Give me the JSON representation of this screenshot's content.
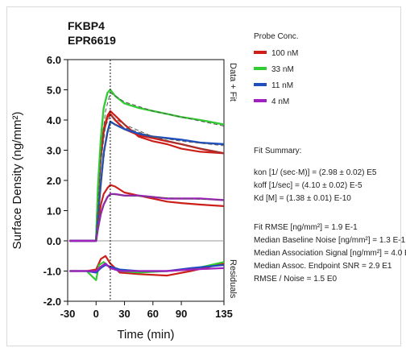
{
  "chart_data": {
    "type": "line",
    "title": "FKBP4",
    "subtitle": "EPR6619",
    "xlabel": "Time (min)",
    "ylabel": "Surface Density (ng/mm²)",
    "x_ticks": [
      "-30",
      "0",
      "30",
      "60",
      "90",
      "135"
    ],
    "y_ticks": [
      "6.0",
      "5.0",
      "4.0",
      "3.0",
      "2.0",
      "1.0",
      "0.0",
      "-1.0",
      "-2.0"
    ],
    "xlim": [
      -30,
      135
    ],
    "ylim": [
      -2.0,
      6.0
    ],
    "data_fit_label": "Data + Fit",
    "residuals_label": "Residuals",
    "legend_title": "Probe Conc.",
    "series": [
      {
        "name": "100 nM",
        "color": "#cc1f1a",
        "x": [
          -28,
          -20,
          -10,
          -2,
          0,
          2,
          5,
          8,
          12,
          15,
          20,
          30,
          45,
          60,
          75,
          90,
          110,
          135
        ],
        "y": [
          0,
          0,
          0,
          0,
          0,
          1.5,
          2.8,
          3.6,
          4.1,
          4.2,
          4.0,
          3.7,
          3.5,
          3.4,
          3.3,
          3.2,
          3.05,
          2.9
        ]
      },
      {
        "name": "33 nM",
        "color": "#33cc33",
        "x": [
          -28,
          -20,
          -10,
          -2,
          0,
          2,
          5,
          8,
          12,
          15,
          20,
          30,
          45,
          60,
          75,
          90,
          110,
          135
        ],
        "y": [
          0,
          0,
          0,
          0,
          0,
          1.8,
          3.4,
          4.4,
          4.9,
          5.0,
          4.8,
          4.55,
          4.4,
          4.3,
          4.2,
          4.1,
          4.0,
          3.85
        ]
      },
      {
        "name": "11 nM",
        "color": "#1f4fbf",
        "x": [
          -28,
          -20,
          -10,
          -2,
          0,
          2,
          5,
          8,
          12,
          15,
          20,
          30,
          45,
          60,
          75,
          90,
          110,
          135
        ],
        "y": [
          0,
          0,
          0,
          0,
          0,
          0.8,
          1.9,
          2.9,
          3.6,
          3.95,
          3.85,
          3.7,
          3.55,
          3.45,
          3.4,
          3.35,
          3.25,
          3.2
        ]
      },
      {
        "name": "4 nM",
        "color": "#a020c0",
        "x": [
          -28,
          -20,
          -10,
          -2,
          0,
          2,
          5,
          8,
          12,
          15,
          20,
          30,
          45,
          60,
          75,
          90,
          110,
          135
        ],
        "y": [
          0,
          0,
          0,
          0,
          0,
          0.4,
          0.9,
          1.2,
          1.45,
          1.55,
          1.55,
          1.5,
          1.5,
          1.45,
          1.4,
          1.4,
          1.4,
          1.35
        ]
      }
    ],
    "extra_traces": [
      {
        "color": "#cc1f1a",
        "x": [
          -28,
          -10,
          -2,
          0,
          2,
          5,
          8,
          12,
          15,
          20,
          30,
          45,
          60,
          75,
          90,
          110,
          135
        ],
        "y": [
          0,
          0,
          0,
          0,
          1.6,
          2.9,
          3.7,
          4.15,
          4.3,
          4.15,
          3.85,
          3.45,
          3.3,
          3.2,
          3.05,
          2.95,
          2.9
        ]
      },
      {
        "color": "#cc1f1a",
        "x": [
          -28,
          -10,
          -2,
          0,
          2,
          5,
          8,
          12,
          15,
          20,
          30,
          45,
          60,
          75,
          90,
          110,
          135
        ],
        "y": [
          0,
          0,
          0,
          0,
          0.6,
          1.2,
          1.55,
          1.75,
          1.85,
          1.8,
          1.6,
          1.5,
          1.4,
          1.3,
          1.25,
          1.2,
          1.15
        ]
      }
    ],
    "fit_curves": [
      {
        "x": [
          0,
          5,
          10,
          15,
          30,
          60,
          90,
          135
        ],
        "y": [
          0,
          2.6,
          3.8,
          4.15,
          3.85,
          3.45,
          3.2,
          2.9
        ]
      },
      {
        "x": [
          0,
          5,
          10,
          15,
          30,
          60,
          90,
          135
        ],
        "y": [
          0,
          2.9,
          4.3,
          4.9,
          4.6,
          4.3,
          4.1,
          3.8
        ]
      },
      {
        "x": [
          0,
          5,
          10,
          15,
          30,
          60,
          90,
          135
        ],
        "y": [
          0,
          1.8,
          3.2,
          3.9,
          3.75,
          3.45,
          3.3,
          3.15
        ]
      },
      {
        "x": [
          0,
          5,
          10,
          15,
          30,
          60,
          90,
          135
        ],
        "y": [
          0,
          0.9,
          1.35,
          1.55,
          1.5,
          1.45,
          1.4,
          1.35
        ]
      }
    ],
    "residuals": [
      {
        "color": "#cc1f1a",
        "x": [
          -28,
          -10,
          0,
          5,
          10,
          15,
          25,
          45,
          75,
          100,
          135
        ],
        "y": [
          -1.0,
          -1.0,
          -0.95,
          -0.6,
          -0.5,
          -0.75,
          -1.05,
          -1.1,
          -1.15,
          -1.0,
          -0.75
        ]
      },
      {
        "color": "#33cc33",
        "x": [
          -28,
          -10,
          0,
          3,
          8,
          15,
          25,
          45,
          75,
          100,
          135
        ],
        "y": [
          -1.0,
          -1.0,
          -1.3,
          -0.8,
          -0.7,
          -0.9,
          -1.0,
          -1.05,
          -1.0,
          -0.95,
          -0.7
        ]
      },
      {
        "color": "#1f4fbf",
        "x": [
          -28,
          -10,
          0,
          5,
          10,
          15,
          25,
          45,
          75,
          100,
          135
        ],
        "y": [
          -1.0,
          -1.0,
          -1.05,
          -0.9,
          -0.8,
          -0.85,
          -0.95,
          -1.0,
          -1.0,
          -0.9,
          -0.8
        ]
      },
      {
        "color": "#a020c0",
        "x": [
          -28,
          -10,
          0,
          5,
          10,
          15,
          25,
          45,
          75,
          100,
          135
        ],
        "y": [
          -1.0,
          -1.0,
          -1.0,
          -0.85,
          -0.75,
          -0.9,
          -1.0,
          -1.0,
          -1.0,
          -0.95,
          -0.9
        ]
      }
    ],
    "vertical_marker_x": 15,
    "grid": false
  },
  "legend_items": [
    {
      "label": "100 nM",
      "color": "#cc1f1a"
    },
    {
      "label": "33 nM",
      "color": "#33cc33"
    },
    {
      "label": "11 nM",
      "color": "#1f4fbf"
    },
    {
      "label": "4 nM",
      "color": "#a020c0"
    }
  ],
  "fit_summary": {
    "title": "Fit Summary:",
    "kon": "kon  [1/ (sec·M)]  =   (2.98 ± 0.02)  E5",
    "koff": "koff  [1/sec]  =   (4.10 ± 0.02) E-5",
    "kd": "Kd  [M]  =   (1.38 ± 0.01) E-10",
    "rmse": "Fit RMSE [ng/mm²]  =   1.9 E-1",
    "baseline_noise": "Median Baseline Noise [ng/mm²]  =  1.3 E-1",
    "association_signal": "Median Association Signal [ng/mm²]  =  4.0 E0",
    "endpoint_snr": "Median Assoc. Endpoint SNR  =   2.9 E1",
    "rmse_noise": "RMSE / Noise  =   1.5 E0"
  }
}
